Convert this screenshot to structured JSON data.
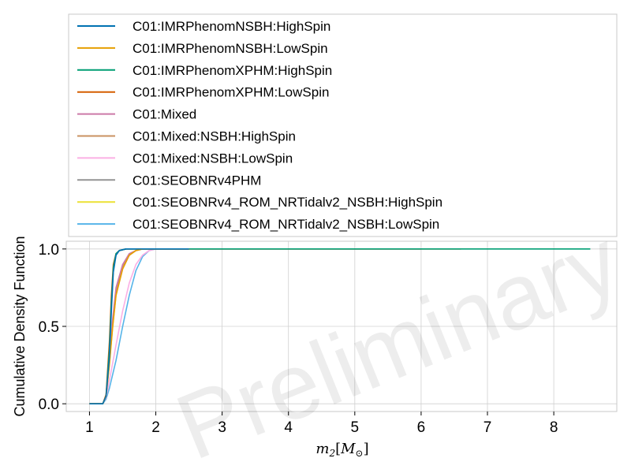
{
  "watermark": "Preliminary",
  "chart_data": {
    "type": "line",
    "title": "",
    "xlabel": "m_2[M_⊙]",
    "ylabel": "Cumulative Density Function",
    "xlim": [
      0.65,
      8.95
    ],
    "ylim": [
      -0.05,
      1.05
    ],
    "xticks": [
      1,
      2,
      3,
      4,
      5,
      6,
      7,
      8
    ],
    "yticks": [
      0.0,
      0.5,
      1.0
    ],
    "ytick_labels": [
      "0.0",
      "0.5",
      "1.0"
    ],
    "grid": true,
    "legend_position": "top (above plot)",
    "series": [
      {
        "name": "C01:IMRPhenomNSBH:HighSpin",
        "color": "#0072b2",
        "x": [
          1.0,
          1.2,
          1.25,
          1.3,
          1.33,
          1.36,
          1.4,
          1.45,
          1.55,
          1.75,
          2.0,
          2.5
        ],
        "y": [
          0.0,
          0.0,
          0.05,
          0.3,
          0.6,
          0.85,
          0.96,
          0.99,
          1.0,
          1.0,
          1.0,
          1.0
        ]
      },
      {
        "name": "C01:IMRPhenomNSBH:LowSpin",
        "color": "#e69f00",
        "x": [
          1.0,
          1.2,
          1.25,
          1.3,
          1.35,
          1.4,
          1.5,
          1.6,
          1.7,
          1.8,
          2.0,
          2.5
        ],
        "y": [
          0.0,
          0.0,
          0.05,
          0.25,
          0.5,
          0.7,
          0.87,
          0.96,
          0.99,
          1.0,
          1.0,
          1.0
        ]
      },
      {
        "name": "C01:IMRPhenomXPHM:HighSpin",
        "color": "#009e73",
        "x": [
          1.0,
          1.2,
          1.25,
          1.3,
          1.33,
          1.36,
          1.4,
          1.45,
          1.55,
          1.8,
          3.0,
          5.0,
          7.0,
          8.55
        ],
        "y": [
          0.0,
          0.0,
          0.05,
          0.35,
          0.65,
          0.88,
          0.97,
          0.99,
          1.0,
          1.0,
          1.0,
          1.0,
          1.0,
          1.0
        ]
      },
      {
        "name": "C01:IMRPhenomXPHM:LowSpin",
        "color": "#d55e00",
        "x": [
          1.0,
          1.2,
          1.25,
          1.3,
          1.33,
          1.36,
          1.4,
          1.45,
          1.55,
          1.8,
          3.0,
          5.0,
          6.6
        ],
        "y": [
          0.0,
          0.0,
          0.06,
          0.4,
          0.7,
          0.9,
          0.97,
          0.99,
          1.0,
          1.0,
          1.0,
          1.0,
          1.0
        ]
      },
      {
        "name": "C01:Mixed",
        "color": "#cc79a7",
        "x": [
          1.0,
          1.2,
          1.25,
          1.3,
          1.35,
          1.4,
          1.5,
          1.6,
          1.7,
          1.8,
          3.0,
          5.0,
          6.0
        ],
        "y": [
          0.0,
          0.0,
          0.05,
          0.28,
          0.55,
          0.75,
          0.9,
          0.97,
          0.99,
          1.0,
          1.0,
          1.0,
          1.0
        ]
      },
      {
        "name": "C01:Mixed:NSBH:HighSpin",
        "color": "#ca9161",
        "x": [
          1.0,
          1.2,
          1.25,
          1.3,
          1.35,
          1.4,
          1.5,
          1.6,
          1.7,
          1.8,
          2.0
        ],
        "y": [
          0.0,
          0.0,
          0.05,
          0.27,
          0.52,
          0.72,
          0.89,
          0.96,
          0.99,
          1.0,
          1.0
        ]
      },
      {
        "name": "C01:Mixed:NSBH:LowSpin",
        "color": "#fbafe4",
        "x": [
          1.0,
          1.2,
          1.25,
          1.3,
          1.4,
          1.5,
          1.6,
          1.7,
          1.8,
          1.9,
          2.0,
          2.5
        ],
        "y": [
          0.0,
          0.0,
          0.04,
          0.15,
          0.38,
          0.6,
          0.78,
          0.9,
          0.96,
          0.99,
          1.0,
          1.0
        ]
      },
      {
        "name": "C01:SEOBNRv4PHM",
        "color": "#949494",
        "x": [
          1.0,
          1.2,
          1.25,
          1.3,
          1.33,
          1.36,
          1.4,
          1.45,
          1.55,
          1.8,
          2.5
        ],
        "y": [
          0.0,
          0.0,
          0.05,
          0.33,
          0.63,
          0.87,
          0.96,
          0.99,
          1.0,
          1.0,
          1.0
        ]
      },
      {
        "name": "C01:SEOBNRv4_ROM_NRTidalv2_NSBH:HighSpin",
        "color": "#ece133",
        "x": [
          1.0,
          1.2,
          1.25,
          1.3,
          1.35,
          1.4,
          1.5,
          1.6,
          1.7,
          1.8,
          2.0
        ],
        "y": [
          0.0,
          0.0,
          0.05,
          0.26,
          0.5,
          0.7,
          0.88,
          0.96,
          0.99,
          1.0,
          1.0
        ]
      },
      {
        "name": "C01:SEOBNRv4_ROM_NRTidalv2_NSBH:LowSpin",
        "color": "#56b4e9",
        "x": [
          1.0,
          1.2,
          1.25,
          1.3,
          1.4,
          1.5,
          1.6,
          1.7,
          1.8,
          1.9,
          2.0,
          2.5
        ],
        "y": [
          0.0,
          0.0,
          0.03,
          0.1,
          0.28,
          0.5,
          0.7,
          0.86,
          0.95,
          0.99,
          1.0,
          1.0
        ]
      }
    ]
  }
}
